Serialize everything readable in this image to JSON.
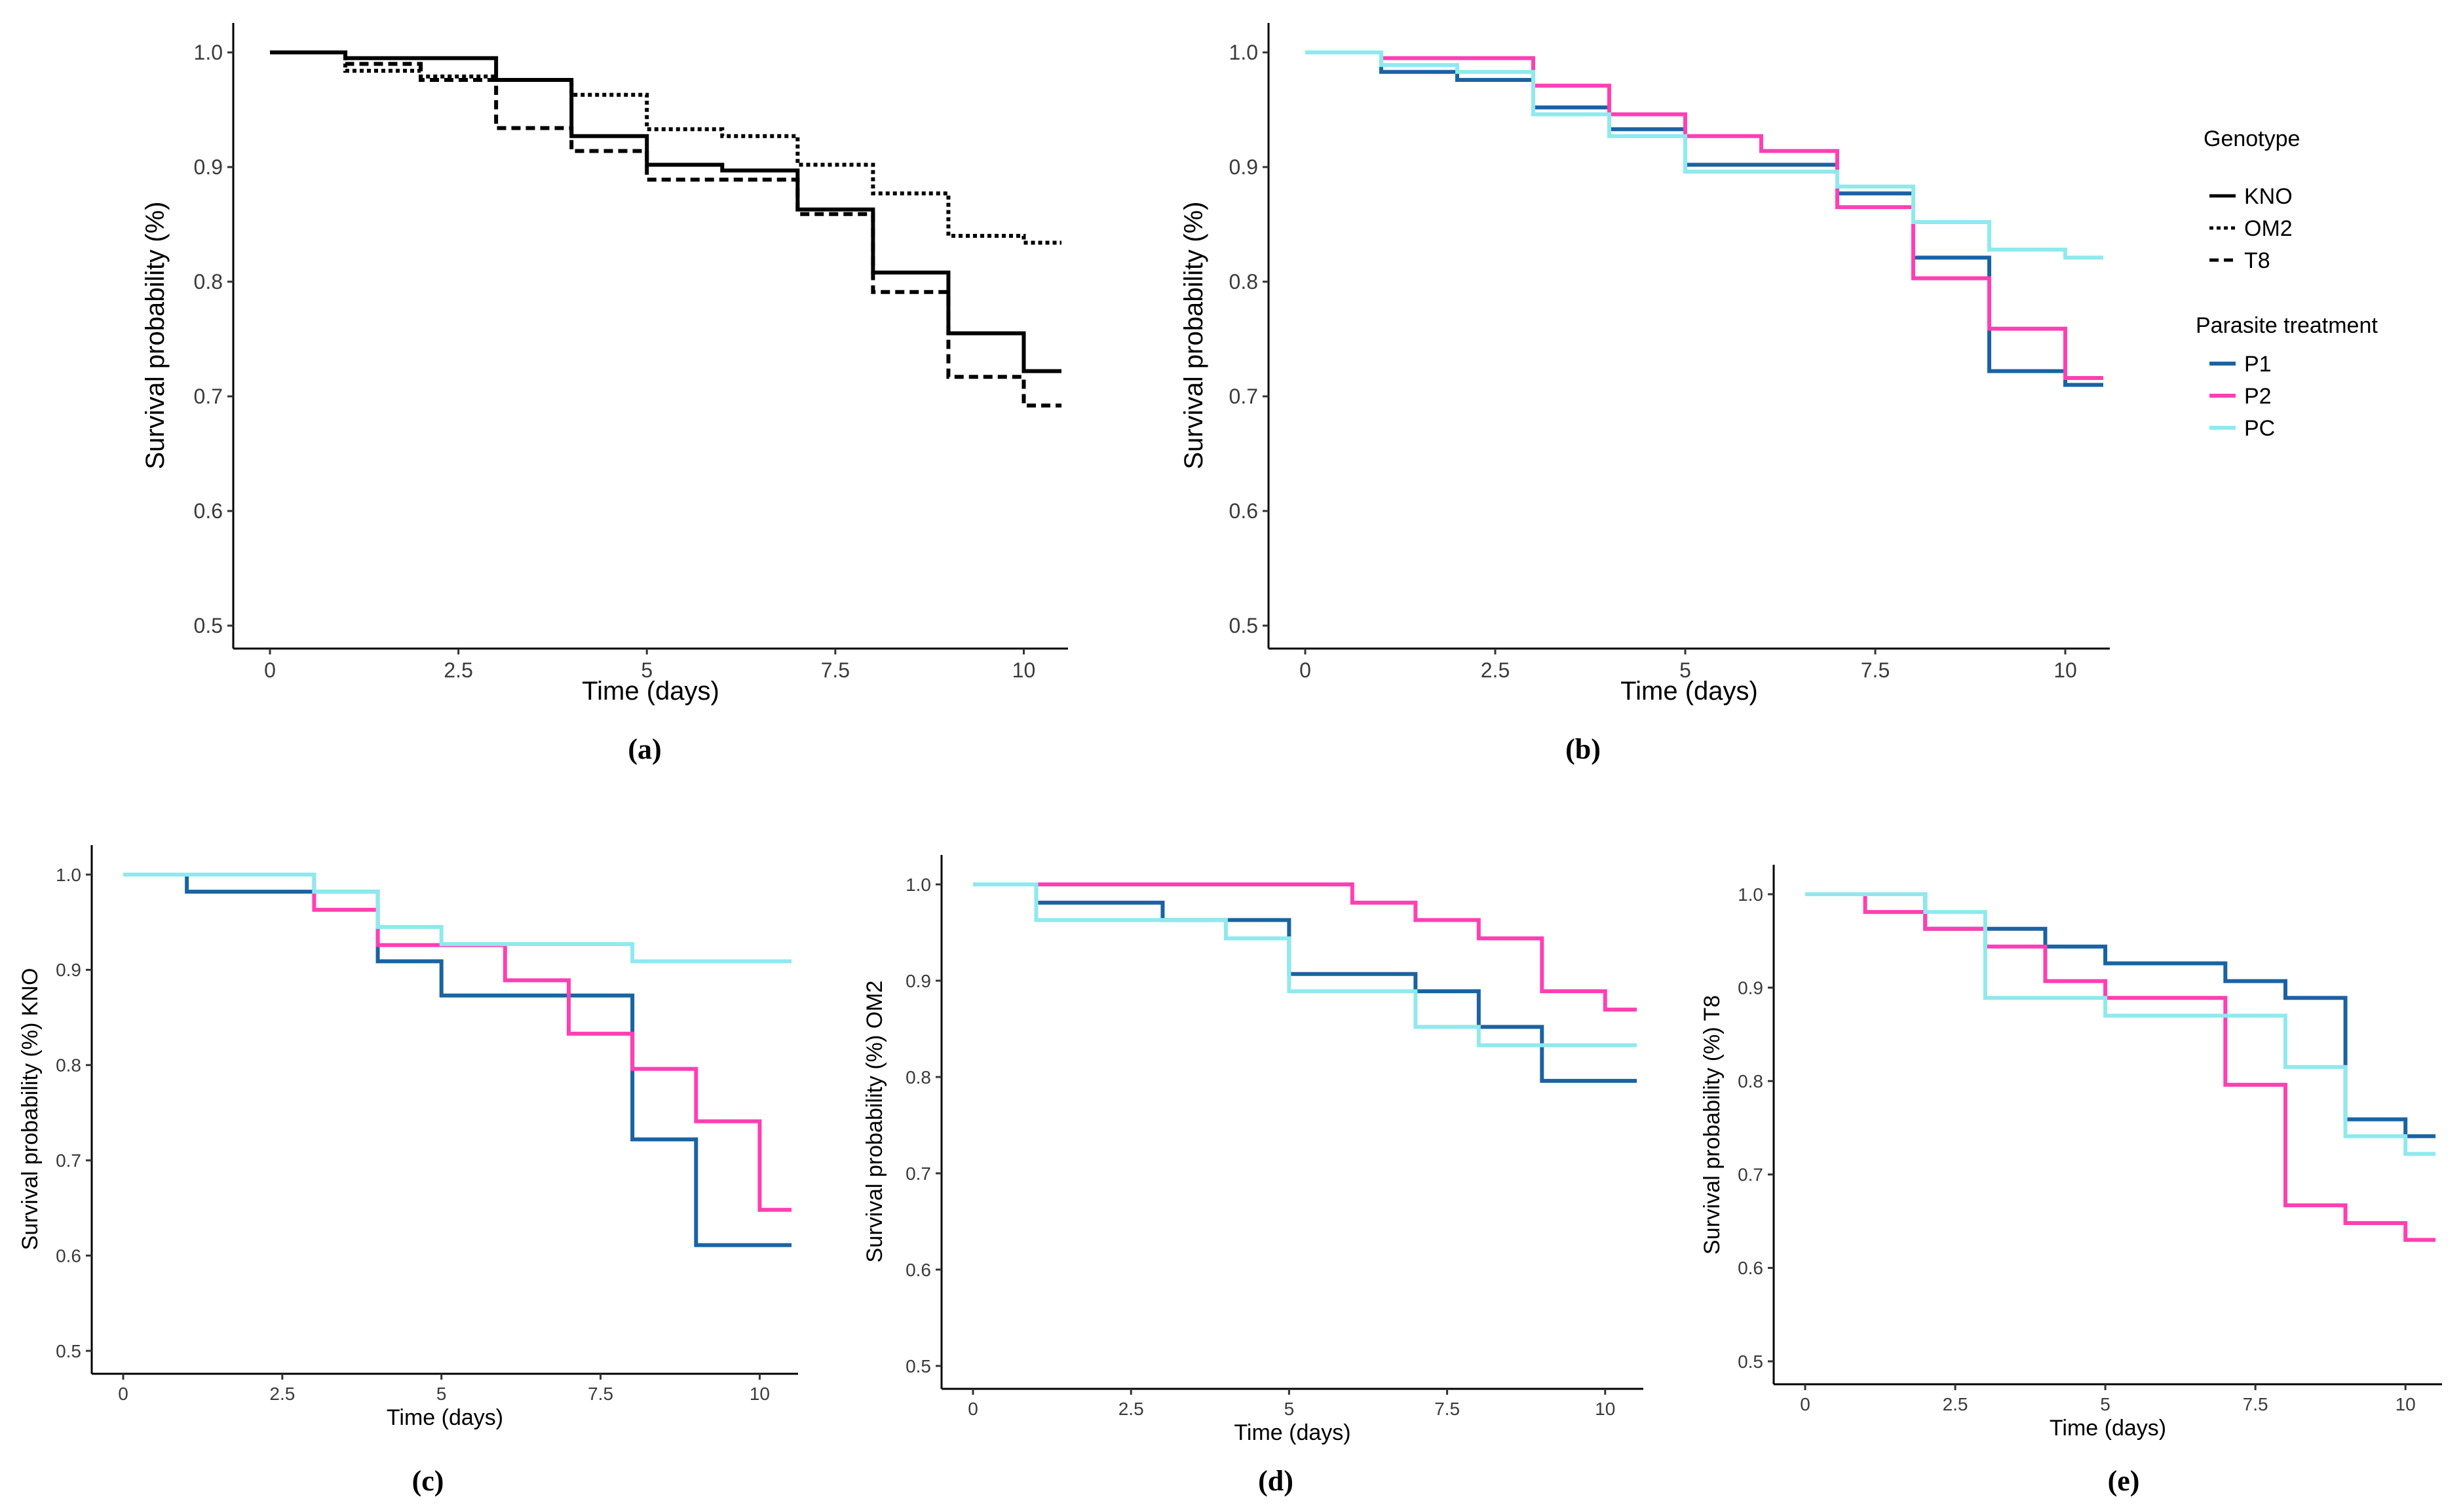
{
  "colors": {
    "P1": "#1a63a3",
    "P2": "#ff3fb3",
    "PC": "#8fe9ee",
    "black": "#000000"
  },
  "legend": {
    "genotype_title": "Genotype",
    "genotype": [
      {
        "name": "KNO",
        "dash": "solid"
      },
      {
        "name": "OM2",
        "dash": "dotted"
      },
      {
        "name": "T8",
        "dash": "dashed"
      }
    ],
    "treatment_title": "Parasite treatment",
    "treatment": [
      {
        "name": "P1",
        "color": "P1"
      },
      {
        "name": "P2",
        "color": "P2"
      },
      {
        "name": "PC",
        "color": "PC"
      }
    ]
  },
  "chart_data": [
    {
      "panel": "(a)",
      "type": "line",
      "xlabel": "Time (days)",
      "ylabel": "Survival probability (%)",
      "xlim": [
        0,
        10.5
      ],
      "ylim": [
        0.5,
        1.0
      ],
      "xticks": [
        "0",
        "2.5",
        "5",
        "7.5",
        "10"
      ],
      "yticks": [
        "0.5",
        "0.6",
        "0.7",
        "0.8",
        "0.9",
        "1.0"
      ],
      "series": [
        {
          "name": "KNO",
          "color": "black",
          "dash": "solid",
          "x": [
            0,
            1,
            3,
            4,
            5,
            6,
            7,
            8,
            9,
            10,
            10.5
          ],
          "y": [
            1.0,
            0.995,
            0.976,
            0.927,
            0.902,
            0.897,
            0.863,
            0.808,
            0.755,
            0.722,
            0.722
          ]
        },
        {
          "name": "OM2",
          "color": "black",
          "dash": "dotted",
          "x": [
            0,
            1,
            2,
            3,
            4,
            5,
            6,
            7,
            8,
            9,
            10,
            10.5
          ],
          "y": [
            1.0,
            0.984,
            0.979,
            0.976,
            0.963,
            0.933,
            0.927,
            0.902,
            0.877,
            0.84,
            0.834,
            0.834
          ]
        },
        {
          "name": "T8",
          "color": "black",
          "dash": "dashed",
          "x": [
            0,
            1,
            2,
            3,
            4,
            5,
            7,
            8,
            9,
            10,
            10.5
          ],
          "y": [
            1.0,
            0.99,
            0.976,
            0.934,
            0.914,
            0.889,
            0.859,
            0.791,
            0.717,
            0.692,
            0.692
          ]
        }
      ]
    },
    {
      "panel": "(b)",
      "type": "line",
      "xlabel": "Time (days)",
      "ylabel": "Survival probability (%)",
      "xlim": [
        0,
        10.5
      ],
      "ylim": [
        0.5,
        1.0
      ],
      "xticks": [
        "0",
        "2.5",
        "5",
        "7.5",
        "10"
      ],
      "yticks": [
        "0.5",
        "0.6",
        "0.7",
        "0.8",
        "0.9",
        "1.0"
      ],
      "series": [
        {
          "name": "P1",
          "color": "P1",
          "dash": "solid",
          "x": [
            0,
            1,
            2,
            3,
            4,
            5,
            7,
            8,
            9,
            10,
            10.5
          ],
          "y": [
            1.0,
            0.983,
            0.976,
            0.952,
            0.933,
            0.902,
            0.877,
            0.821,
            0.722,
            0.71,
            0.71
          ]
        },
        {
          "name": "P2",
          "color": "P2",
          "dash": "solid",
          "x": [
            0,
            1,
            3,
            4,
            5,
            6,
            7,
            8,
            9,
            10,
            10.5
          ],
          "y": [
            1.0,
            0.995,
            0.971,
            0.946,
            0.927,
            0.914,
            0.865,
            0.803,
            0.759,
            0.716,
            0.716
          ]
        },
        {
          "name": "PC",
          "color": "PC",
          "dash": "solid",
          "x": [
            0,
            1,
            2,
            3,
            4,
            5,
            7,
            8,
            9,
            10,
            10.5
          ],
          "y": [
            1.0,
            0.989,
            0.983,
            0.946,
            0.927,
            0.896,
            0.883,
            0.852,
            0.828,
            0.821,
            0.821
          ]
        }
      ]
    },
    {
      "panel": "(c)",
      "type": "line",
      "xlabel": "Time (days)",
      "ylabel": "Survival probability (%) KNO",
      "xlim": [
        0,
        10.5
      ],
      "ylim": [
        0.5,
        1.0
      ],
      "xticks": [
        "0",
        "2.5",
        "5",
        "7.5",
        "10"
      ],
      "yticks": [
        "0.5",
        "0.6",
        "0.7",
        "0.8",
        "0.9",
        "1.0"
      ],
      "series": [
        {
          "name": "P1",
          "color": "P1",
          "dash": "solid",
          "x": [
            0,
            1,
            4,
            5,
            8,
            9,
            10.5
          ],
          "y": [
            1.0,
            0.982,
            0.909,
            0.873,
            0.722,
            0.611,
            0.611
          ]
        },
        {
          "name": "P2",
          "color": "P2",
          "dash": "solid",
          "x": [
            0,
            3,
            4,
            6,
            7,
            8,
            9,
            10,
            10.5
          ],
          "y": [
            1.0,
            0.963,
            0.926,
            0.889,
            0.833,
            0.796,
            0.741,
            0.648,
            0.648
          ]
        },
        {
          "name": "PC",
          "color": "PC",
          "dash": "solid",
          "x": [
            0,
            3,
            4,
            5,
            8,
            10.5
          ],
          "y": [
            1.0,
            0.982,
            0.945,
            0.927,
            0.909,
            0.909
          ]
        }
      ]
    },
    {
      "panel": "(d)",
      "type": "line",
      "xlabel": "Time (days)",
      "ylabel": "Survival probability (%) OM2",
      "xlim": [
        0,
        10.5
      ],
      "ylim": [
        0.5,
        1.0
      ],
      "xticks": [
        "0",
        "2.5",
        "5",
        "7.5",
        "10"
      ],
      "yticks": [
        "0.5",
        "0.6",
        "0.7",
        "0.8",
        "0.9",
        "1.0"
      ],
      "series": [
        {
          "name": "P1",
          "color": "P1",
          "dash": "solid",
          "x": [
            0,
            1,
            3,
            5,
            7,
            8,
            9,
            10.5
          ],
          "y": [
            1.0,
            0.981,
            0.963,
            0.907,
            0.889,
            0.852,
            0.796,
            0.796
          ]
        },
        {
          "name": "P2",
          "color": "P2",
          "dash": "solid",
          "x": [
            0,
            6,
            7,
            8,
            9,
            10,
            10.5
          ],
          "y": [
            1.0,
            0.981,
            0.963,
            0.944,
            0.889,
            0.87,
            0.87
          ]
        },
        {
          "name": "PC",
          "color": "PC",
          "dash": "solid",
          "x": [
            0,
            1,
            4,
            5,
            7,
            8,
            10.5
          ],
          "y": [
            1.0,
            0.963,
            0.944,
            0.889,
            0.852,
            0.833,
            0.833
          ]
        }
      ]
    },
    {
      "panel": "(e)",
      "type": "line",
      "xlabel": "Time (days)",
      "ylabel": "Survival probability (%) T8",
      "xlim": [
        0,
        10.5
      ],
      "ylim": [
        0.5,
        1.0
      ],
      "xticks": [
        "0",
        "2.5",
        "5",
        "7.5",
        "10"
      ],
      "yticks": [
        "0.5",
        "0.6",
        "0.7",
        "0.8",
        "0.9",
        "1.0"
      ],
      "series": [
        {
          "name": "P1",
          "color": "P1",
          "dash": "solid",
          "x": [
            0,
            2,
            4,
            5,
            7,
            8,
            9,
            10,
            10.5
          ],
          "y": [
            1.0,
            0.963,
            0.944,
            0.926,
            0.907,
            0.889,
            0.759,
            0.741,
            0.741
          ]
        },
        {
          "name": "P2",
          "color": "P2",
          "dash": "solid",
          "x": [
            0,
            1,
            2,
            3,
            4,
            5,
            7,
            8,
            9,
            10,
            10.5
          ],
          "y": [
            1.0,
            0.981,
            0.963,
            0.944,
            0.907,
            0.889,
            0.796,
            0.667,
            0.648,
            0.63,
            0.63
          ]
        },
        {
          "name": "PC",
          "color": "PC",
          "dash": "solid",
          "x": [
            0,
            2,
            3,
            5,
            8,
            9,
            10,
            10.5
          ],
          "y": [
            1.0,
            0.981,
            0.889,
            0.87,
            0.815,
            0.741,
            0.722,
            0.722
          ]
        }
      ]
    }
  ]
}
